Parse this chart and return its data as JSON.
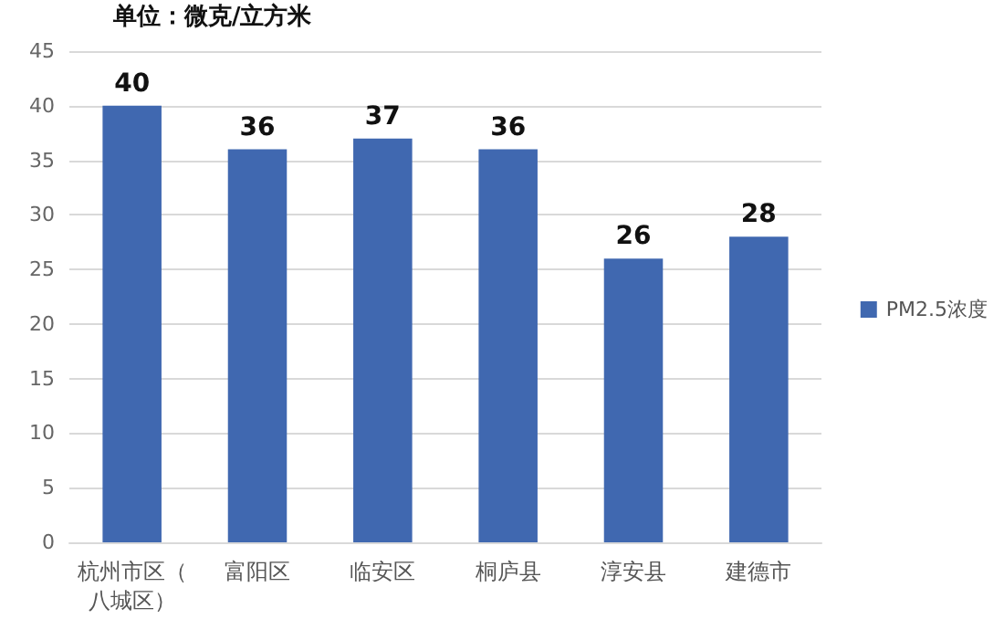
{
  "chart_data": {
    "type": "bar",
    "categories": [
      "杭州市区（八城区）",
      "富阳区",
      "临安区",
      "桐庐县",
      "淳安县",
      "建德市"
    ],
    "series": [
      {
        "name": "PM2.5浓度",
        "color": "#4068b0",
        "values": [
          40,
          36,
          37,
          36,
          26,
          28
        ]
      }
    ],
    "annotations": [
      "单位：微克/立方米"
    ],
    "ylim": [
      0,
      45
    ],
    "yticks": [
      0,
      5,
      10,
      15,
      20,
      25,
      30,
      35,
      40,
      45
    ],
    "grid": "y",
    "legend": "right",
    "data_labels": true
  }
}
